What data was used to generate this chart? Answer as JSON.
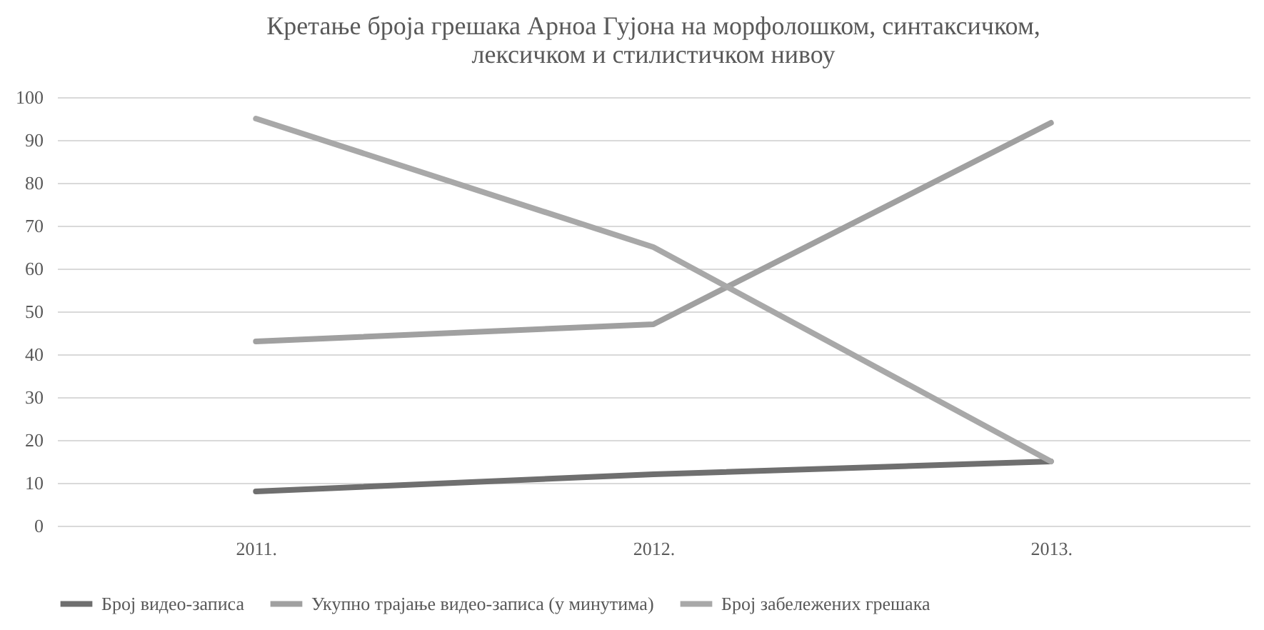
{
  "chart_data": {
    "type": "line",
    "title": "Кретање броја грешака Арноа Гујона на морфолошком, синтаксичком,\nлексичком и стилистичком нивоу",
    "categories": [
      "2011.",
      "2012.",
      "2013."
    ],
    "series": [
      {
        "name": "Број видео-записа",
        "color": "#6f6f6f",
        "values": [
          8,
          12,
          15
        ]
      },
      {
        "name": "Укупно трајање видео-записа (у минутима)",
        "color": "#a0a0a0",
        "values": [
          43,
          47,
          94
        ]
      },
      {
        "name": "Број забележених грешака",
        "color": "#a8a8a8",
        "values": [
          95,
          65,
          15
        ]
      }
    ],
    "ylim": [
      0,
      100
    ],
    "yticks": [
      0,
      10,
      20,
      30,
      40,
      50,
      60,
      70,
      80,
      90,
      100
    ],
    "grid": "y",
    "legend": "bottom",
    "marker": "none",
    "line_style": "solid"
  }
}
